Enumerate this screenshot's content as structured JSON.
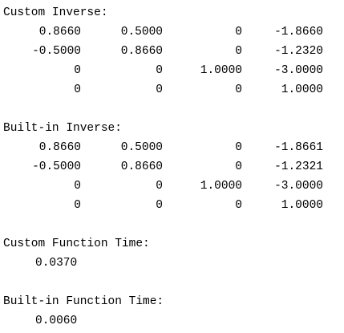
{
  "custom_inverse": {
    "heading": "Custom Inverse:",
    "rows": [
      [
        "0.8660",
        "0.5000",
        "0",
        "-1.8660"
      ],
      [
        "-0.5000",
        "0.8660",
        "0",
        "-1.2320"
      ],
      [
        "0",
        "0",
        "1.0000",
        "-3.0000"
      ],
      [
        "0",
        "0",
        "0",
        "1.0000"
      ]
    ]
  },
  "builtin_inverse": {
    "heading": "Built-in Inverse:",
    "rows": [
      [
        "0.8660",
        "0.5000",
        "0",
        "-1.8661"
      ],
      [
        "-0.5000",
        "0.8660",
        "0",
        "-1.2321"
      ],
      [
        "0",
        "0",
        "1.0000",
        "-3.0000"
      ],
      [
        "0",
        "0",
        "0",
        "1.0000"
      ]
    ]
  },
  "custom_time": {
    "heading": "Custom Function Time:",
    "value": "0.0370"
  },
  "builtin_time": {
    "heading": "Built-in Function Time:",
    "value": "0.0060"
  }
}
